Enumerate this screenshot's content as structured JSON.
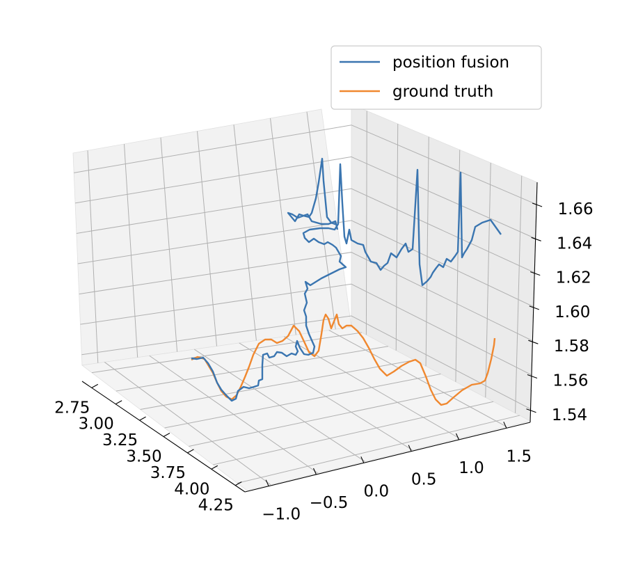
{
  "chart_data": {
    "type": "line",
    "projection": "3d",
    "axes": {
      "x": {
        "ticks": [
          "2.75",
          "3.00",
          "3.25",
          "3.50",
          "3.75",
          "4.00",
          "4.25"
        ],
        "range": [
          2.75,
          4.25
        ]
      },
      "y": {
        "ticks": [
          "−1.0",
          "−0.5",
          "0.0",
          "0.5",
          "1.0",
          "1.5"
        ],
        "range": [
          -1.0,
          1.5
        ]
      },
      "z": {
        "ticks": [
          "1.54",
          "1.56",
          "1.58",
          "1.60",
          "1.62",
          "1.64",
          "1.66"
        ],
        "range": [
          1.54,
          1.66
        ]
      }
    },
    "grid": true,
    "legend": {
      "placement": "top-right"
    },
    "series": [
      {
        "name": "position fusion",
        "color": "#3a75b0"
      },
      {
        "name": "ground truth",
        "color": "#f0882f"
      }
    ]
  }
}
